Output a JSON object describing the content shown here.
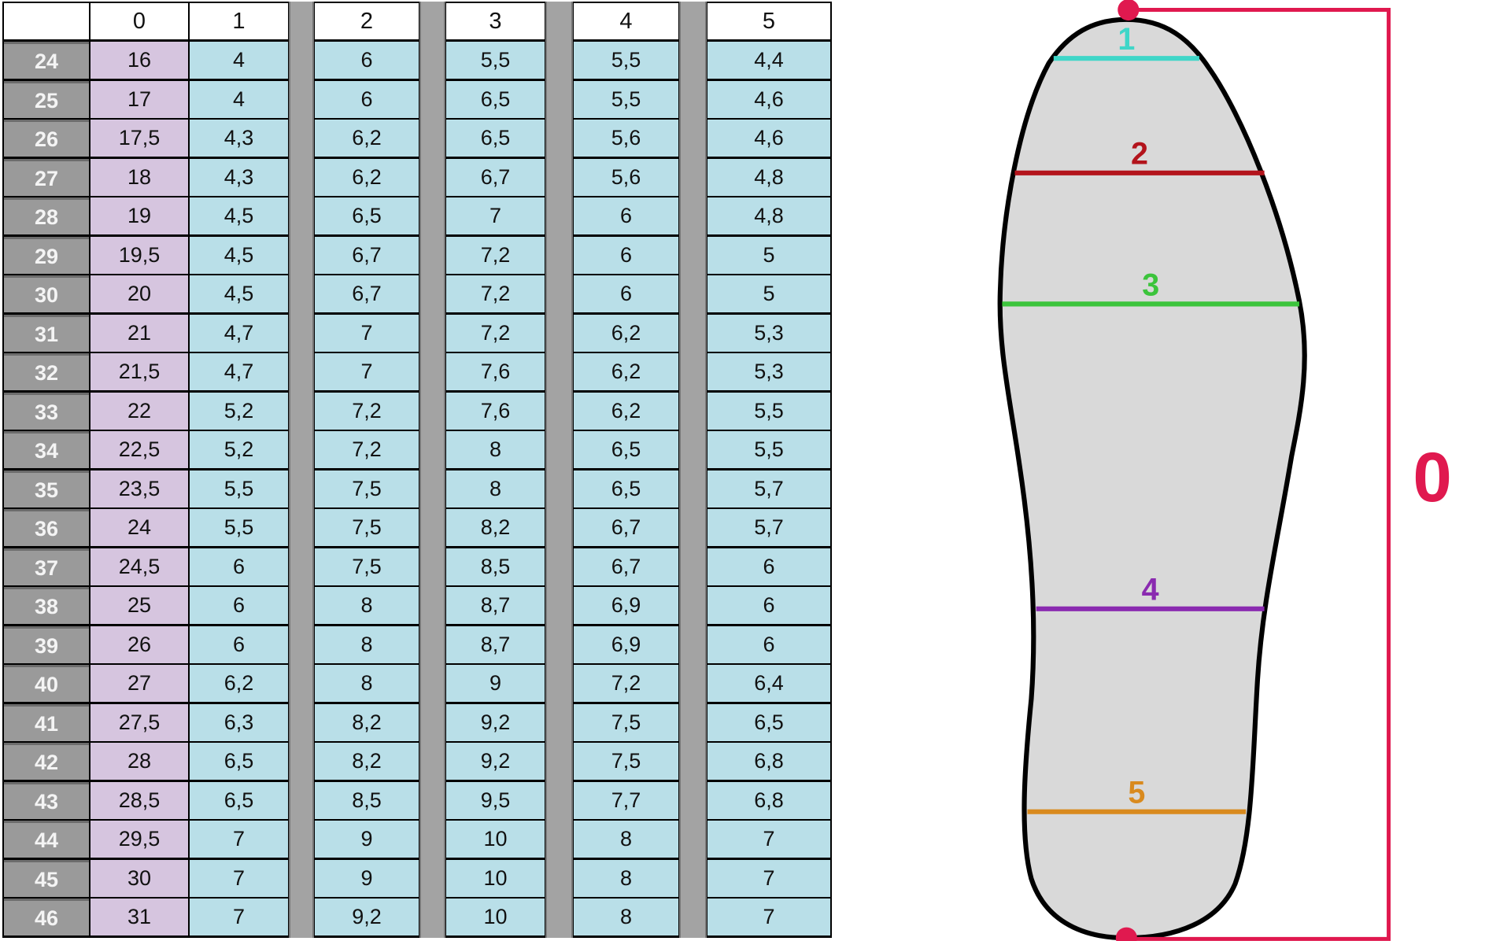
{
  "table": {
    "columns": [
      "0",
      "1",
      "2",
      "3",
      "4",
      "5"
    ],
    "rows": [
      {
        "size": "24",
        "values": [
          "16",
          "4",
          "6",
          "5,5",
          "5,5",
          "4,4"
        ]
      },
      {
        "size": "25",
        "values": [
          "17",
          "4",
          "6",
          "6,5",
          "5,5",
          "4,6"
        ]
      },
      {
        "size": "26",
        "values": [
          "17,5",
          "4,3",
          "6,2",
          "6,5",
          "5,6",
          "4,6"
        ]
      },
      {
        "size": "27",
        "values": [
          "18",
          "4,3",
          "6,2",
          "6,7",
          "5,6",
          "4,8"
        ]
      },
      {
        "size": "28",
        "values": [
          "19",
          "4,5",
          "6,5",
          "7",
          "6",
          "4,8"
        ]
      },
      {
        "size": "29",
        "values": [
          "19,5",
          "4,5",
          "6,7",
          "7,2",
          "6",
          "5"
        ]
      },
      {
        "size": "30",
        "values": [
          "20",
          "4,5",
          "6,7",
          "7,2",
          "6",
          "5"
        ]
      },
      {
        "size": "31",
        "values": [
          "21",
          "4,7",
          "7",
          "7,2",
          "6,2",
          "5,3"
        ]
      },
      {
        "size": "32",
        "values": [
          "21,5",
          "4,7",
          "7",
          "7,6",
          "6,2",
          "5,3"
        ]
      },
      {
        "size": "33",
        "values": [
          "22",
          "5,2",
          "7,2",
          "7,6",
          "6,2",
          "5,5"
        ]
      },
      {
        "size": "34",
        "values": [
          "22,5",
          "5,2",
          "7,2",
          "8",
          "6,5",
          "5,5"
        ]
      },
      {
        "size": "35",
        "values": [
          "23,5",
          "5,5",
          "7,5",
          "8",
          "6,5",
          "5,7"
        ]
      },
      {
        "size": "36",
        "values": [
          "24",
          "5,5",
          "7,5",
          "8,2",
          "6,7",
          "5,7"
        ]
      },
      {
        "size": "37",
        "values": [
          "24,5",
          "6",
          "7,5",
          "8,5",
          "6,7",
          "6"
        ]
      },
      {
        "size": "38",
        "values": [
          "25",
          "6",
          "8",
          "8,7",
          "6,9",
          "6"
        ]
      },
      {
        "size": "39",
        "values": [
          "26",
          "6",
          "8",
          "8,7",
          "6,9",
          "6"
        ]
      },
      {
        "size": "40",
        "values": [
          "27",
          "6,2",
          "8",
          "9",
          "7,2",
          "6,4"
        ]
      },
      {
        "size": "41",
        "values": [
          "27,5",
          "6,3",
          "8,2",
          "9,2",
          "7,5",
          "6,5"
        ]
      },
      {
        "size": "42",
        "values": [
          "28",
          "6,5",
          "8,2",
          "9,2",
          "7,5",
          "6,8"
        ]
      },
      {
        "size": "43",
        "values": [
          "28,5",
          "6,5",
          "8,5",
          "9,5",
          "7,7",
          "6,8"
        ]
      },
      {
        "size": "44",
        "values": [
          "29,5",
          "7",
          "9",
          "10",
          "8",
          "7"
        ]
      },
      {
        "size": "45",
        "values": [
          "30",
          "7",
          "9",
          "10",
          "8",
          "7"
        ]
      },
      {
        "size": "46",
        "values": [
          "31",
          "7",
          "9,2",
          "10",
          "8",
          "7"
        ]
      }
    ]
  },
  "diagram": {
    "length_label": "0",
    "length_color": "#e0194f",
    "measure_lines": [
      {
        "label": "1",
        "color": "#3fd6c8"
      },
      {
        "label": "2",
        "color": "#b3141c"
      },
      {
        "label": "3",
        "color": "#3cc43c"
      },
      {
        "label": "4",
        "color": "#8a2ab0"
      },
      {
        "label": "5",
        "color": "#d98a1e"
      }
    ],
    "sole_fill": "#d9d9d9"
  }
}
